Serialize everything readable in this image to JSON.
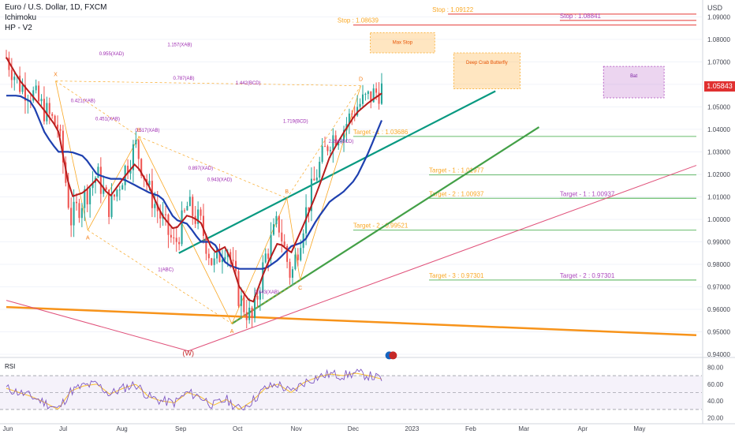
{
  "header": {
    "symbol": "Euro / U.S. Dollar, 1D, FXCM",
    "indicator_1": "Ichimoku",
    "indicator_2": "HP - V2",
    "currency": "USD"
  },
  "current_price": "1.05843",
  "colors": {
    "bullish": "#26a69a",
    "bearish": "#ef5350",
    "conversion_line": "#b71c1c",
    "base_line": "#1e40af",
    "trend_teal": "#089981",
    "trend_green": "#43a047",
    "trend_orange": "#f7931a",
    "trend_pink": "#e0517a",
    "target_line": "#66bb6a",
    "stop_line": "#e53935",
    "rsi_line": "#7e57c2",
    "rsi_ma": "#fbc02d"
  },
  "chart_data": {
    "type": "candlestick",
    "ylim": [
      0.94,
      1.094
    ],
    "price_ticks": [
      "1.09000",
      "1.08000",
      "1.07000",
      "1.06000",
      "1.05000",
      "1.04000",
      "1.03000",
      "1.02000",
      "1.01000",
      "1.00000",
      "0.99000",
      "0.98000",
      "0.97000",
      "0.96000",
      "0.95000",
      "0.94000"
    ],
    "x_ticks": [
      "Jun",
      "Jul",
      "Aug",
      "Sep",
      "Oct",
      "Nov",
      "Dec",
      "2023",
      "Feb",
      "Mar",
      "Apr",
      "May"
    ],
    "pivots": [
      {
        "label": "X",
        "date": "Jun 27",
        "price": 1.0615
      },
      {
        "label": "A",
        "date": "Jul 14",
        "price": 0.9952
      },
      {
        "label": "B",
        "date": "Aug 10",
        "price": 1.0368
      },
      {
        "label": "A",
        "date": "Sep 28",
        "price": 0.9536
      },
      {
        "label": "B",
        "date": "Oct 27",
        "price": 1.0094
      },
      {
        "label": "C",
        "date": "Nov 03",
        "price": 0.973
      },
      {
        "label": "D",
        "date": "Dec 05",
        "price": 1.0594
      }
    ],
    "candle_path_from": "Jun 01",
    "candle_path_to": "Dec 16",
    "close_anchors": [
      1.072,
      1.06,
      1.056,
      1.048,
      1.041,
      1.0,
      1.01,
      1.02,
      1.005,
      1.02,
      1.033,
      1.013,
      1.0,
      0.988,
      1.006,
      0.998,
      0.979,
      0.99,
      0.965,
      0.955,
      0.983,
      0.999,
      0.974,
      1.0,
      1.021,
      1.036,
      1.04,
      1.05,
      1.054,
      1.058
    ],
    "conversion_anchors": [
      1.072,
      1.062,
      1.055,
      1.048,
      1.04,
      1.01,
      1.012,
      1.018,
      1.01,
      1.018,
      1.025,
      1.015,
      1.002,
      0.995,
      1.002,
      0.999,
      0.985,
      0.988,
      0.97,
      0.962,
      0.978,
      0.99,
      0.985,
      0.998,
      1.012,
      1.028,
      1.038,
      1.047,
      1.052,
      1.056
    ],
    "base_anchors": [
      1.055,
      1.055,
      1.052,
      1.038,
      1.03,
      1.03,
      1.028,
      1.02,
      1.018,
      1.018,
      1.015,
      1.012,
      1.01,
      1.0,
      0.998,
      0.99,
      0.99,
      0.98,
      0.978,
      0.978,
      0.978,
      0.982,
      0.988,
      0.99,
      1.0,
      1.008,
      1.012,
      1.018,
      1.03,
      1.044
    ],
    "rsi_ticks": [
      "80.00",
      "60.00",
      "40.00",
      "20.00"
    ],
    "rsi_anchors": [
      55,
      50,
      45,
      38,
      30,
      52,
      58,
      60,
      48,
      55,
      60,
      45,
      40,
      38,
      50,
      45,
      35,
      42,
      30,
      40,
      55,
      60,
      50,
      62,
      68,
      72,
      70,
      73,
      70,
      66
    ],
    "rsi_band": [
      30,
      70
    ],
    "targets": [
      {
        "label": "Target - 1 : 1.03686",
        "price": 1.03686,
        "from": "Dec 01",
        "to": "May 31"
      },
      {
        "label": "Target - 1 : 1.01977",
        "price": 1.01977,
        "from": "Jan 10",
        "to": "May 31"
      },
      {
        "label": "Target - 2 : 1.00937",
        "price": 1.00937,
        "from": "Jan 10",
        "to": "May 31"
      },
      {
        "label": "Target - 1 : 1.00937",
        "price": 1.00937,
        "from": "Mar 20",
        "to": "May 31"
      },
      {
        "label": "Target - 2 : 0.99521",
        "price": 0.99521,
        "from": "Dec 01",
        "to": "May 31"
      },
      {
        "label": "Target - 3 : 0.97301",
        "price": 0.97301,
        "from": "Jan 10",
        "to": "May 31"
      },
      {
        "label": "Target - 2 : 0.97301",
        "price": 0.97301,
        "from": "Mar 20",
        "to": "May 31"
      }
    ],
    "stops": [
      {
        "label": "Stop : 1.08639",
        "price": 1.08639,
        "from": "Dec 01",
        "to": "May 31"
      },
      {
        "label": "Stop : 1.09122",
        "price": 1.09122,
        "from": "Jan 20",
        "to": "May 31"
      },
      {
        "label": "Stop : 1.08841",
        "price": 1.08841,
        "from": "Mar 20",
        "to": "May 31"
      }
    ],
    "zones": [
      {
        "label": "Bat",
        "from": "Apr 12",
        "to": "May 14",
        "top": 1.068,
        "bottom": 1.054
      },
      {
        "label": "Deep Crab Butterfly",
        "from": "Jan 23",
        "to": "Feb 27",
        "top": 1.074,
        "bottom": 1.058
      },
      {
        "label": "Max Stop",
        "from": "Dec 10",
        "to": "Jan 13",
        "top": 1.083,
        "bottom": 1.074
      }
    ],
    "fib_labels": [
      "0.955(XAD)",
      "1.157(XAB)",
      "0.787(AB)",
      "0.421(XAB)",
      "0.451(XAB)",
      "0.517(XAB)",
      "1.442(BCD)",
      "1.719(BCD)",
      "0.943(XAD)",
      "1(ABC)",
      "0.643(XAB)",
      "0.897(XAD)",
      "2.266(BCD)"
    ],
    "wave_label": "(W)",
    "trendlines": [
      {
        "name": "teal-channel-upper",
        "from": "Aug 31",
        "p1": 0.985,
        "to": "Feb 14",
        "p2": 1.057,
        "color": "trend_teal"
      },
      {
        "name": "green-channel-lower",
        "from": "Sep 28",
        "p1": 0.9536,
        "to": "Mar 09",
        "p2": 1.041,
        "color": "trend_green"
      },
      {
        "name": "orange-support",
        "from": "Jun 01",
        "p1": 0.961,
        "to": "May 31",
        "p2": 0.9485,
        "color": "trend_orange"
      },
      {
        "name": "pink-rising",
        "from": "Sep 05",
        "p1": 0.9415,
        "to": "May 31",
        "p2": 1.024,
        "color": "trend_pink"
      },
      {
        "name": "pink-falling",
        "from": "Jun 01",
        "p1": 0.964,
        "to": "Sep 05",
        "p2": 0.9415,
        "color": "trend_pink"
      }
    ]
  }
}
